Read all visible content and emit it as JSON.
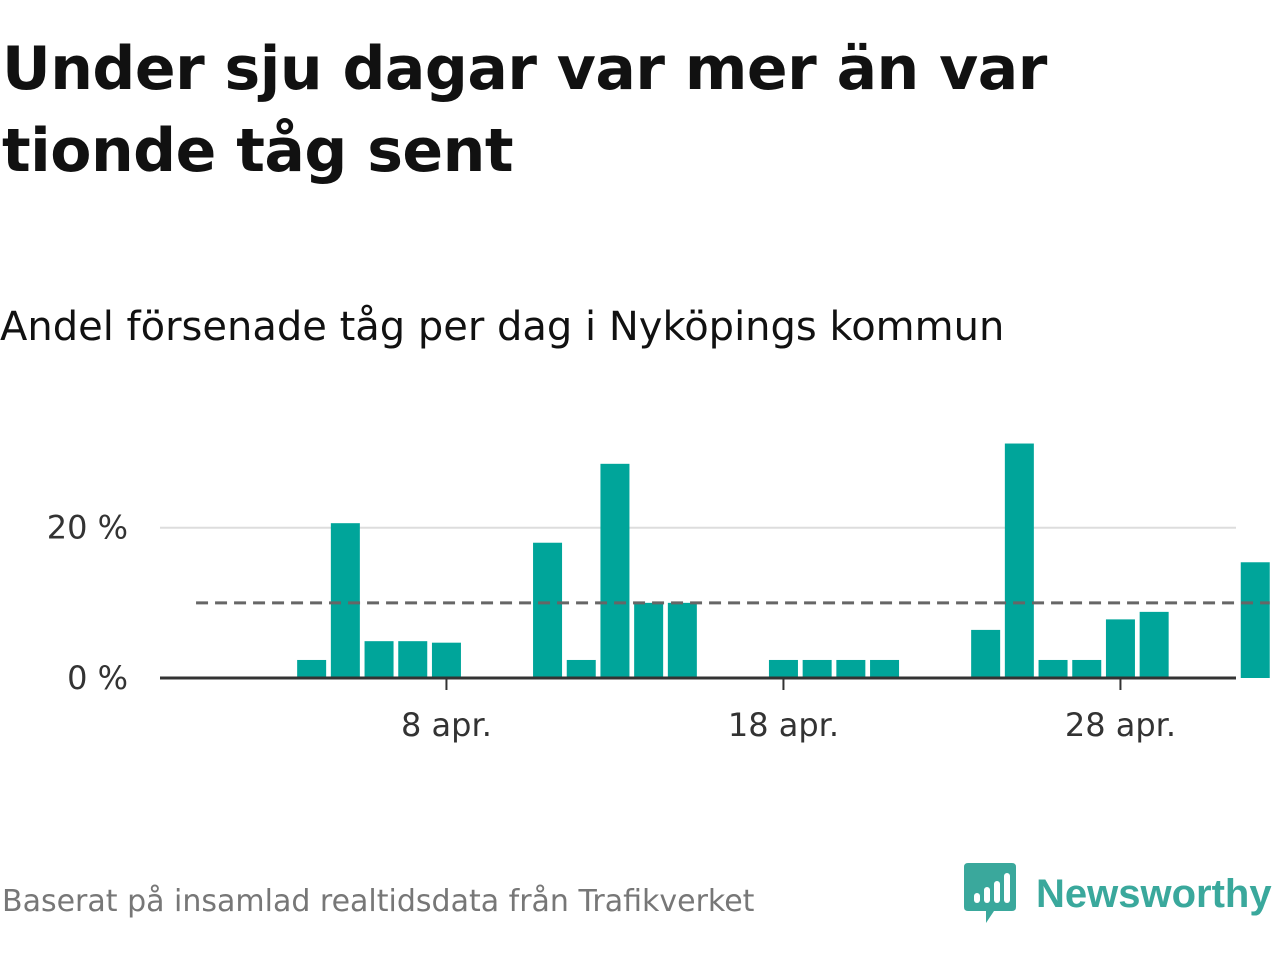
{
  "header": {
    "title": "Under sju dagar var mer än var tionde tåg sent",
    "subtitle": "Andel försenade tåg per dag i Nyköpings kommun"
  },
  "footer": {
    "source": "Baserat på insamlad realtidsdata från Trafikverket",
    "brand": "Newsworthy"
  },
  "colors": {
    "bar": "#00a59a",
    "reference_line": "#666666",
    "gridline": "#dddddd",
    "axis": "#333333",
    "brand": "#3aa89c"
  },
  "icons": {
    "logo": "bar-chart-speech-bubble-icon"
  },
  "chart_data": {
    "type": "bar",
    "title": "Andel försenade tåg per dag i Nyköpings kommun",
    "xlabel": "",
    "ylabel": "",
    "x_unit": "day of April",
    "xlim": [
      -0.5,
      31.5
    ],
    "ylim": [
      0,
      33
    ],
    "days": [
      1,
      2,
      3,
      4,
      5,
      6,
      7,
      8,
      9,
      10,
      11,
      12,
      13,
      14,
      15,
      16,
      17,
      18,
      19,
      20,
      21,
      22,
      23,
      24,
      25,
      26,
      27,
      28,
      29,
      30,
      31
    ],
    "values": [
      0,
      0,
      0,
      2.4,
      20.6,
      4.9,
      4.9,
      4.7,
      0,
      0,
      18,
      2.4,
      28.5,
      10,
      10,
      0,
      0,
      2.4,
      2.4,
      2.4,
      2.4,
      0,
      0,
      6.4,
      31.2,
      2.4,
      2.4,
      7.8,
      8.8,
      0,
      0
    ],
    "extra_day": 32,
    "extra_value": 15.4,
    "reference_line": {
      "value": 10,
      "from_day": 1,
      "to_day": 32,
      "style": "dashed"
    },
    "y_ticks": [
      {
        "value": 0,
        "label": "0 %"
      },
      {
        "value": 20,
        "label": "20 %"
      }
    ],
    "x_ticks": [
      {
        "day": 8,
        "label": "8 apr."
      },
      {
        "day": 18,
        "label": "18 apr."
      },
      {
        "day": 28,
        "label": "28 apr."
      }
    ],
    "grid": true,
    "legend": "none"
  }
}
